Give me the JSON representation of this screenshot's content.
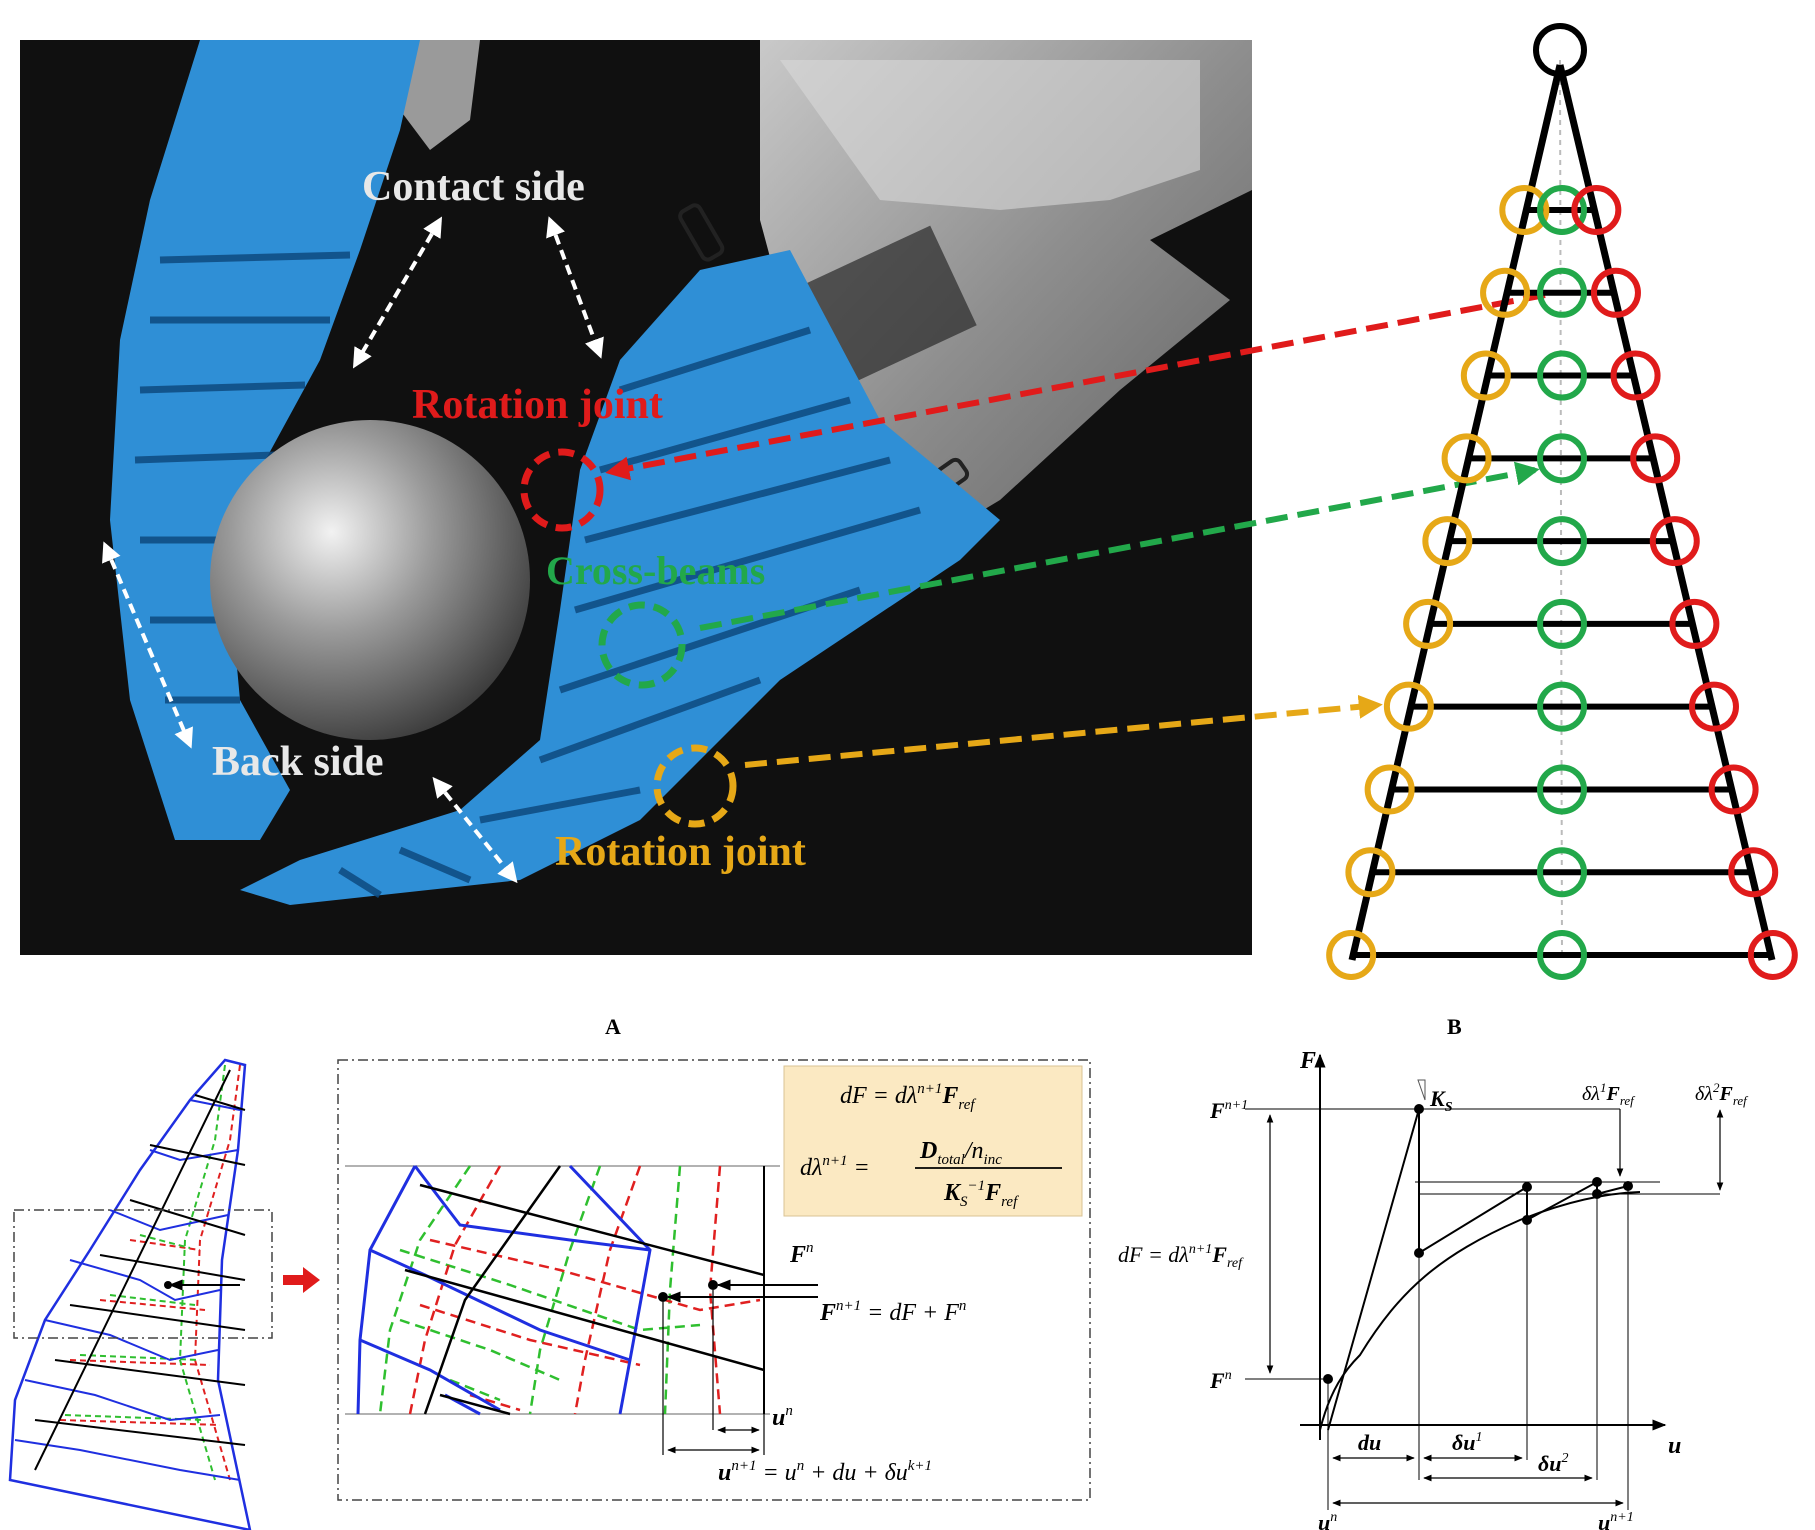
{
  "panelA": {
    "caption": "A",
    "labels": {
      "contact_side": "Contact side",
      "back_side": "Back side",
      "rotation_joint_red": "Rotation joint",
      "cross_beams": "Cross-beams",
      "rotation_joint_yellow": "Rotation joint"
    },
    "colors": {
      "finger_blue": "#2f8fd6",
      "background": "#101010",
      "red": "#e01b1b",
      "green": "#22a84a",
      "yellow": "#e6a817"
    }
  },
  "panelB": {
    "caption": "B",
    "rungs": 10,
    "colors": {
      "left_joint": "#e6a817",
      "center_joint": "#22a84a",
      "right_joint": "#e01b1b",
      "frame": "#000000"
    }
  },
  "panelC": {
    "force_label": "F",
    "colors": {
      "blue": "#1f2fe0",
      "red": "#e02020",
      "green": "#2fbf2f",
      "black": "#000000"
    }
  },
  "panelD": {
    "eq_box_fill": "#fbe9c2",
    "eq1": {
      "lhs": "dF",
      "rhs": "dλ",
      "sup": "n+1",
      "tail": "F",
      "tail_sub": "ref"
    },
    "eq2": {
      "lhs": "dλ",
      "lhs_sup": "n+1",
      "num": "D",
      "num_sub": "total",
      "num_tail": "/n",
      "num_tail_sub": "inc",
      "den": "K",
      "den_sub": "S",
      "den_sup": "−1",
      "den_tail": "F",
      "den_tail_sub": "ref"
    },
    "Fn": {
      "base": "F",
      "sup": "n"
    },
    "Fn1": {
      "base": "F",
      "sup": "n+1",
      "rhs": "= dF + F",
      "rhs_sup": "n"
    },
    "un": {
      "base": "u",
      "sup": "n"
    },
    "un1": {
      "base": "u",
      "sup": "n+1",
      "rhs": "= u",
      "rhs_sup": "n",
      "rhs2": "+ du + δu",
      "rhs2_sup": "k+1"
    }
  },
  "panelE": {
    "axis_y": "F",
    "axis_x": "u",
    "Fn1": {
      "base": "F",
      "sup": "n+1"
    },
    "Fn": {
      "base": "F",
      "sup": "n"
    },
    "Ks": {
      "base": "K",
      "sub": "S"
    },
    "dl1": {
      "a": "δλ",
      "a_sup": "1",
      "b": "F",
      "b_sub": "ref"
    },
    "dl2": {
      "a": "δλ",
      "a_sup": "2",
      "b": "F",
      "b_sub": "ref"
    },
    "dF": {
      "lhs": "dF = dλ",
      "sup": "n+1",
      "tail": "F",
      "tail_sub": "ref"
    },
    "du": "du",
    "du1": {
      "base": "δu",
      "sup": "1"
    },
    "du2": {
      "base": "δu",
      "sup": "2"
    },
    "un": {
      "base": "u",
      "sup": "n"
    },
    "un1": {
      "base": "u",
      "sup": "n+1"
    }
  }
}
